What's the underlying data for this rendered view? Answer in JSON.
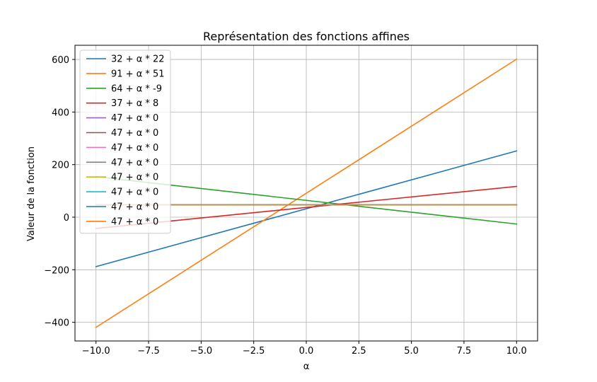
{
  "chart_data": {
    "type": "line",
    "title": "Représentation des fonctions affines",
    "xlabel": "α",
    "ylabel": "Valeur de la fonction",
    "xlim": [
      -11,
      11
    ],
    "ylim": [
      -471,
      654
    ],
    "xticks": [
      -10,
      -7.5,
      -5,
      -2.5,
      0,
      2.5,
      5,
      7.5,
      10
    ],
    "xtick_labels": [
      "−10.0",
      "−7.5",
      "−5.0",
      "−2.5",
      "0.0",
      "2.5",
      "5.0",
      "7.5",
      "10.0"
    ],
    "yticks": [
      -400,
      -200,
      0,
      200,
      400,
      600
    ],
    "ytick_labels": [
      "−400",
      "−200",
      "0",
      "200",
      "400",
      "600"
    ],
    "grid": true,
    "legend_position": "top-left",
    "x": [
      -10,
      10
    ],
    "series": [
      {
        "name": "32 + α * 22",
        "intercept": 32,
        "slope": 22,
        "color": "#1f77b4"
      },
      {
        "name": "91 + α * 51",
        "intercept": 91,
        "slope": 51,
        "color": "#ff7f0e"
      },
      {
        "name": "64 + α * -9",
        "intercept": 64,
        "slope": -9,
        "color": "#2ca02c"
      },
      {
        "name": "37 + α * 8",
        "intercept": 37,
        "slope": 8,
        "color": "#d62728"
      },
      {
        "name": "47 + α * 0",
        "intercept": 47,
        "slope": 0,
        "color": "#9467bd"
      },
      {
        "name": "47 + α * 0",
        "intercept": 47,
        "slope": 0,
        "color": "#8c564b"
      },
      {
        "name": "47 + α * 0",
        "intercept": 47,
        "slope": 0,
        "color": "#e377c2"
      },
      {
        "name": "47 + α * 0",
        "intercept": 47,
        "slope": 0,
        "color": "#7f7f7f"
      },
      {
        "name": "47 + α * 0",
        "intercept": 47,
        "slope": 0,
        "color": "#bcbd22"
      },
      {
        "name": "47 + α * 0",
        "intercept": 47,
        "slope": 0,
        "color": "#17becf"
      },
      {
        "name": "47 + α * 0",
        "intercept": 47,
        "slope": 0,
        "color": "#1f77b4"
      },
      {
        "name": "47 + α * 0",
        "intercept": 47,
        "slope": 0,
        "color": "#ff7f0e"
      }
    ]
  }
}
